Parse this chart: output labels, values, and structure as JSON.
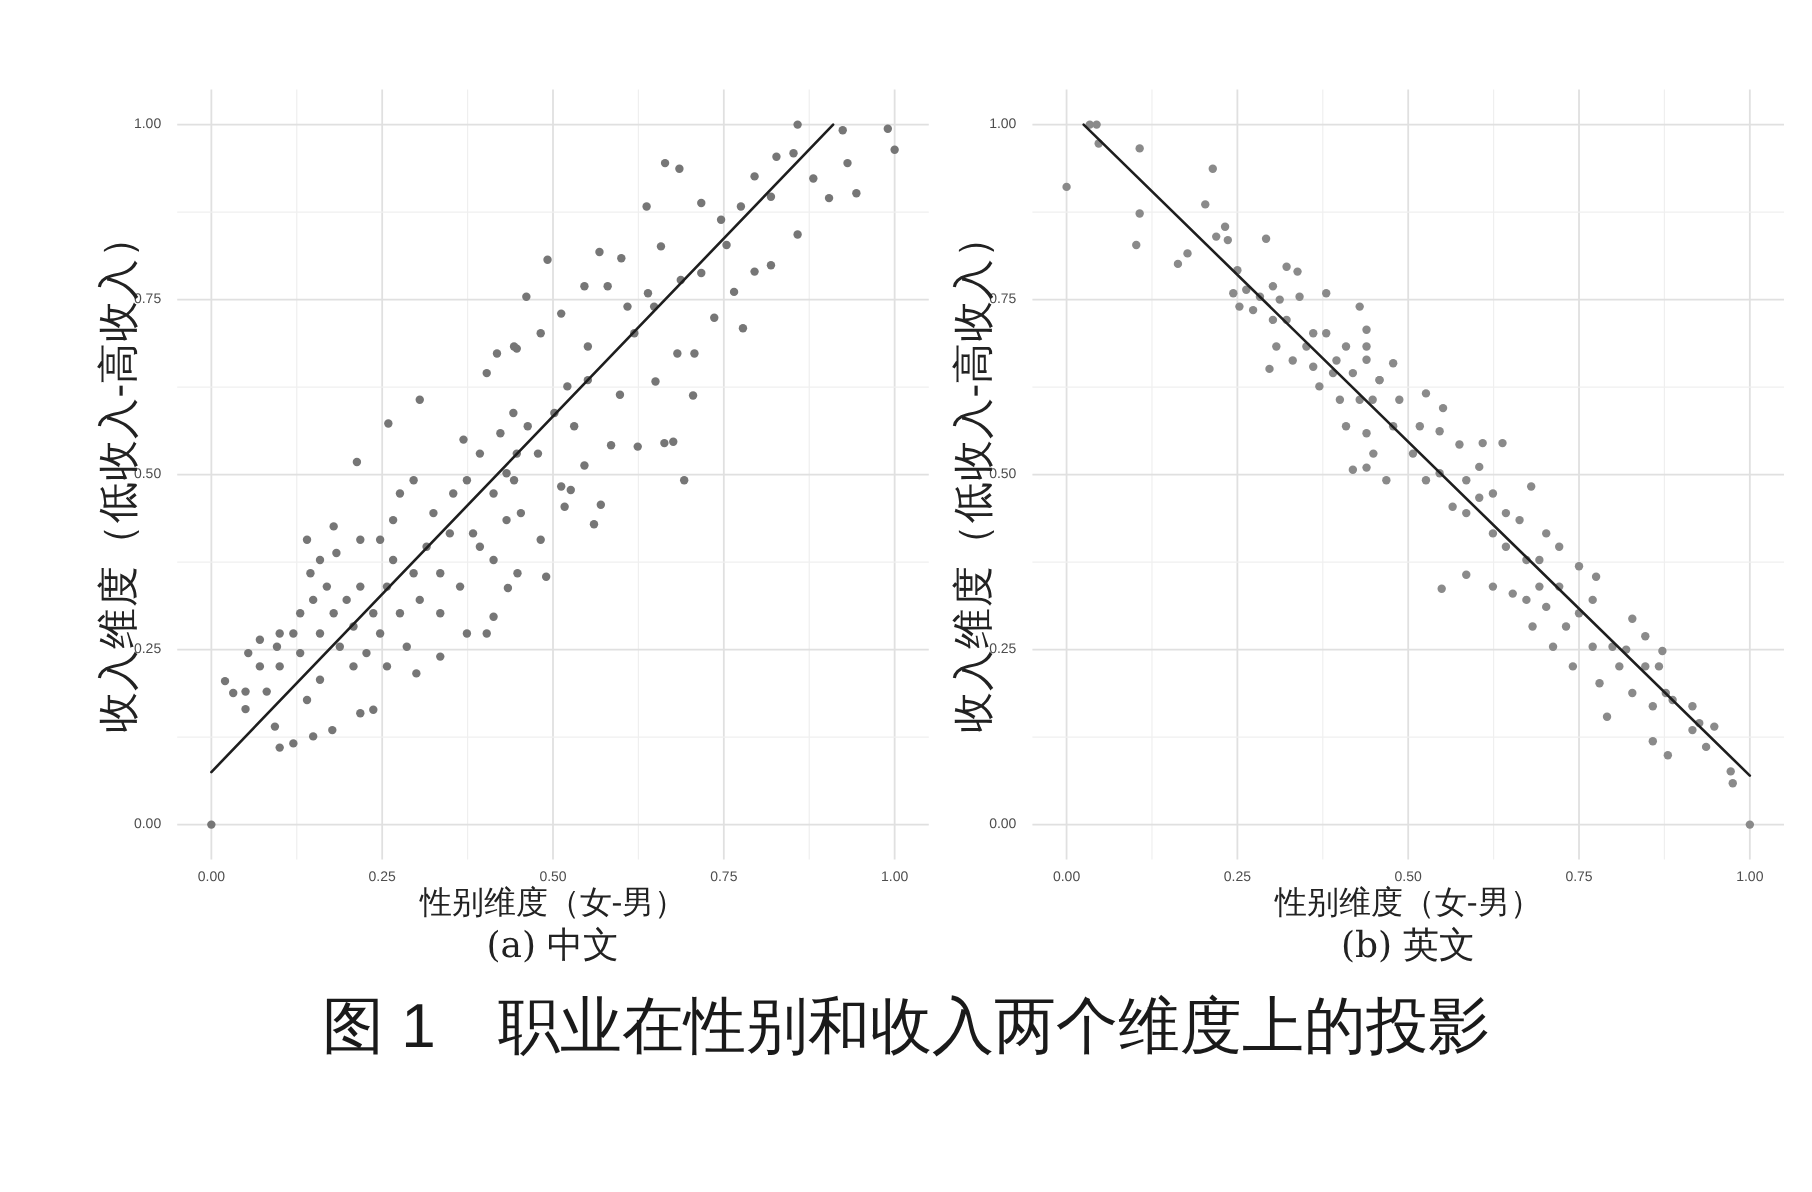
{
  "chart_data": [
    {
      "type": "scatter",
      "title": "(a) 中文",
      "xlabel": "性别维度（女-男）",
      "ylabel": "收入维度（低收入-高收入）",
      "annotations": [
        "图 1　职业在性别和收入两个维度上的投影"
      ],
      "xlim": [
        -0.05,
        1.05
      ],
      "ylim": [
        -0.05,
        1.05
      ],
      "xticks": [
        {
          "value": 0,
          "label": "0.00"
        },
        {
          "value": 0.25,
          "label": "0.25"
        },
        {
          "value": 0.5,
          "label": "0.50"
        },
        {
          "value": 0.75,
          "label": "0.75"
        },
        {
          "value": 1,
          "label": "1.00"
        }
      ],
      "yticks": [
        {
          "value": 0,
          "label": "0.00"
        },
        {
          "value": 0.25,
          "label": "0.25"
        },
        {
          "value": 0.5,
          "label": "0.50"
        },
        {
          "value": 0.75,
          "label": "0.75"
        },
        {
          "value": 1,
          "label": "1.00"
        }
      ],
      "grid": true,
      "marker": "circle",
      "series": [
        {
          "color": "#767676",
          "x": [
            0.0,
            0.02,
            0.05,
            0.05,
            0.054,
            0.081,
            0.093,
            0.1,
            0.12,
            0.096,
            0.1,
            0.13,
            0.149,
            0.14,
            0.145,
            0.179,
            0.183,
            0.177,
            0.218,
            0.213,
            0.237,
            0.259,
            0.305,
            0.335,
            0.3,
            0.403,
            0.418,
            0.447,
            0.403,
            0.413,
            0.369,
            0.032,
            0.071,
            0.1,
            0.13,
            0.12,
            0.149,
            0.159,
            0.169,
            0.179,
            0.188,
            0.198,
            0.208,
            0.218,
            0.227,
            0.237,
            0.247,
            0.257,
            0.266,
            0.276,
            0.286,
            0.296,
            0.305,
            0.315,
            0.325,
            0.335,
            0.349,
            0.354,
            0.374,
            0.383,
            0.393,
            0.413,
            0.423,
            0.432,
            0.442,
            0.447,
            0.266,
            0.247,
            0.296,
            0.276,
            0.218,
            0.159,
            0.208,
            0.257,
            0.335,
            0.364,
            0.393,
            0.413,
            0.432,
            0.374,
            0.071,
            0.159,
            0.14,
            0.858,
            0.99,
            1.0,
            0.924,
            0.944,
            0.904,
            0.931,
            0.664,
            0.685,
            0.637,
            0.492,
            0.461,
            0.778,
            0.705,
            0.663,
            0.676,
            0.624,
            0.692,
            0.57,
            0.56,
            0.546,
            0.49,
            0.482,
            0.448,
            0.434,
            0.858,
            0.819,
            0.795,
            0.765,
            0.754,
            0.736,
            0.707,
            0.682,
            0.65,
            0.598,
            0.585,
            0.521,
            0.58,
            0.568,
            0.6,
            0.658,
            0.717,
            0.746,
            0.795,
            0.827,
            0.852,
            0.881,
            0.819,
            0.775,
            0.687,
            0.639,
            0.609,
            0.546,
            0.512,
            0.482,
            0.443,
            0.551,
            0.619,
            0.648,
            0.717,
            0.551,
            0.502,
            0.463,
            0.531,
            0.443,
            0.478,
            0.512,
            0.453,
            0.517,
            0.526
          ],
          "values": [
            0.0,
            0.205,
            0.19,
            0.165,
            0.245,
            0.19,
            0.14,
            0.11,
            0.116,
            0.254,
            0.226,
            0.245,
            0.126,
            0.407,
            0.359,
            0.426,
            0.388,
            0.135,
            0.159,
            0.518,
            0.164,
            0.573,
            0.607,
            0.24,
            0.216,
            0.645,
            0.673,
            0.68,
            0.273,
            0.297,
            0.55,
            0.188,
            0.226,
            0.273,
            0.302,
            0.273,
            0.321,
            0.273,
            0.34,
            0.302,
            0.254,
            0.321,
            0.283,
            0.34,
            0.245,
            0.302,
            0.273,
            0.34,
            0.378,
            0.302,
            0.254,
            0.359,
            0.321,
            0.397,
            0.445,
            0.359,
            0.416,
            0.473,
            0.492,
            0.416,
            0.53,
            0.473,
            0.559,
            0.502,
            0.588,
            0.53,
            0.435,
            0.407,
            0.492,
            0.473,
            0.407,
            0.378,
            0.226,
            0.226,
            0.302,
            0.34,
            0.397,
            0.378,
            0.435,
            0.273,
            0.264,
            0.207,
            0.178,
            1.0,
            0.994,
            0.964,
            0.992,
            0.902,
            0.895,
            0.945,
            0.945,
            0.937,
            0.883,
            0.807,
            0.754,
            0.709,
            0.613,
            0.545,
            0.547,
            0.54,
            0.492,
            0.457,
            0.429,
            0.513,
            0.354,
            0.407,
            0.359,
            0.338,
            0.843,
            0.799,
            0.79,
            0.761,
            0.828,
            0.724,
            0.673,
            0.673,
            0.633,
            0.614,
            0.542,
            0.626,
            0.769,
            0.818,
            0.809,
            0.826,
            0.888,
            0.864,
            0.926,
            0.954,
            0.959,
            0.923,
            0.897,
            0.883,
            0.778,
            0.759,
            0.74,
            0.769,
            0.73,
            0.702,
            0.683,
            0.683,
            0.702,
            0.74,
            0.788,
            0.635,
            0.588,
            0.569,
            0.569,
            0.492,
            0.53,
            0.483,
            0.445,
            0.454,
            0.478
          ]
        },
        {
          "type": "line",
          "marker": "none",
          "line_style": "solid",
          "color": "#1e1e1e",
          "x": [
            0.0,
            0.91
          ],
          "values": [
            0.075,
            1.0
          ]
        }
      ]
    },
    {
      "type": "scatter",
      "title": "(b) 英文",
      "xlabel": "性别维度（女-男）",
      "ylabel": "收入维度（低收入-高收入）",
      "xlim": [
        -0.05,
        1.05
      ],
      "ylim": [
        -0.05,
        1.05
      ],
      "xticks": [
        {
          "value": 0,
          "label": "0.00"
        },
        {
          "value": 0.25,
          "label": "0.25"
        },
        {
          "value": 0.5,
          "label": "0.50"
        },
        {
          "value": 0.75,
          "label": "0.75"
        },
        {
          "value": 1,
          "label": "1.00"
        }
      ],
      "yticks": [
        {
          "value": 0,
          "label": "0.00"
        },
        {
          "value": 0.25,
          "label": "0.25"
        },
        {
          "value": 0.5,
          "label": "0.50"
        },
        {
          "value": 0.75,
          "label": "0.75"
        },
        {
          "value": 1,
          "label": "1.00"
        }
      ],
      "grid": true,
      "marker": "circle",
      "series": [
        {
          "color": "#8a8a8a",
          "x": [
            0.0,
            0.034,
            0.044,
            0.047,
            0.107,
            0.107,
            0.102,
            0.203,
            0.214,
            0.219,
            0.232,
            0.236,
            0.163,
            0.177,
            0.292,
            0.322,
            0.338,
            0.25,
            0.244,
            0.253,
            0.263,
            0.273,
            0.283,
            0.297,
            0.302,
            0.312,
            0.322,
            0.341,
            0.38,
            0.331,
            0.351,
            0.361,
            0.37,
            0.38,
            0.395,
            0.4,
            0.409,
            0.419,
            0.439,
            0.429,
            0.439,
            0.419,
            0.448,
            0.458,
            0.439,
            0.409,
            0.39,
            0.361,
            0.302,
            0.307,
            0.439,
            1.0,
            0.972,
            0.975,
            0.948,
            0.936,
            0.916,
            0.88,
            0.858,
            0.791,
            0.828,
            0.847,
            0.872,
            0.867,
            0.877,
            0.887,
            0.858,
            0.828,
            0.809,
            0.78,
            0.799,
            0.741,
            0.712,
            0.682,
            0.775,
            0.75,
            0.721,
            0.68,
            0.643,
            0.609,
            0.604,
            0.638,
            0.551,
            0.549,
            0.585,
            0.624,
            0.653,
            0.692,
            0.673,
            0.702,
            0.663,
            0.624,
            0.585,
            0.565,
            0.526,
            0.507,
            0.478,
            0.468,
            0.449,
            0.487,
            0.458,
            0.478,
            0.526,
            0.546,
            0.575,
            0.604,
            0.643,
            0.721,
            0.75,
            0.77,
            0.731,
            0.702,
            0.673,
            0.624,
            0.585,
            0.546,
            0.517,
            0.439,
            0.429,
            0.692,
            0.77,
            0.819,
            0.847,
            0.916,
            0.926
          ],
          "values": [
            0.911,
            1.0,
            1.0,
            0.973,
            0.966,
            0.873,
            0.828,
            0.886,
            0.937,
            0.84,
            0.854,
            0.835,
            0.801,
            0.816,
            0.837,
            0.797,
            0.79,
            0.792,
            0.759,
            0.74,
            0.764,
            0.735,
            0.754,
            0.651,
            0.769,
            0.75,
            0.721,
            0.754,
            0.759,
            0.663,
            0.683,
            0.654,
            0.626,
            0.702,
            0.663,
            0.607,
            0.569,
            0.507,
            0.51,
            0.74,
            0.683,
            0.645,
            0.607,
            0.635,
            0.559,
            0.683,
            0.645,
            0.702,
            0.721,
            0.683,
            0.707,
            0.0,
            0.076,
            0.059,
            0.14,
            0.111,
            0.135,
            0.099,
            0.119,
            0.154,
            0.294,
            0.269,
            0.248,
            0.226,
            0.188,
            0.178,
            0.169,
            0.188,
            0.226,
            0.202,
            0.254,
            0.226,
            0.254,
            0.283,
            0.354,
            0.369,
            0.397,
            0.483,
            0.445,
            0.545,
            0.511,
            0.545,
            0.595,
            0.337,
            0.357,
            0.34,
            0.33,
            0.34,
            0.378,
            0.416,
            0.435,
            0.473,
            0.492,
            0.454,
            0.492,
            0.53,
            0.569,
            0.492,
            0.53,
            0.607,
            0.635,
            0.659,
            0.616,
            0.562,
            0.543,
            0.467,
            0.397,
            0.34,
            0.302,
            0.321,
            0.283,
            0.311,
            0.321,
            0.416,
            0.445,
            0.502,
            0.569,
            0.664,
            0.607,
            0.378,
            0.254,
            0.25,
            0.226,
            0.169,
            0.145
          ]
        },
        {
          "type": "line",
          "marker": "none",
          "line_style": "solid",
          "color": "#1e1e1e",
          "x": [
            0.025,
            1.0
          ],
          "values": [
            1.0,
            0.07
          ]
        }
      ]
    }
  ]
}
